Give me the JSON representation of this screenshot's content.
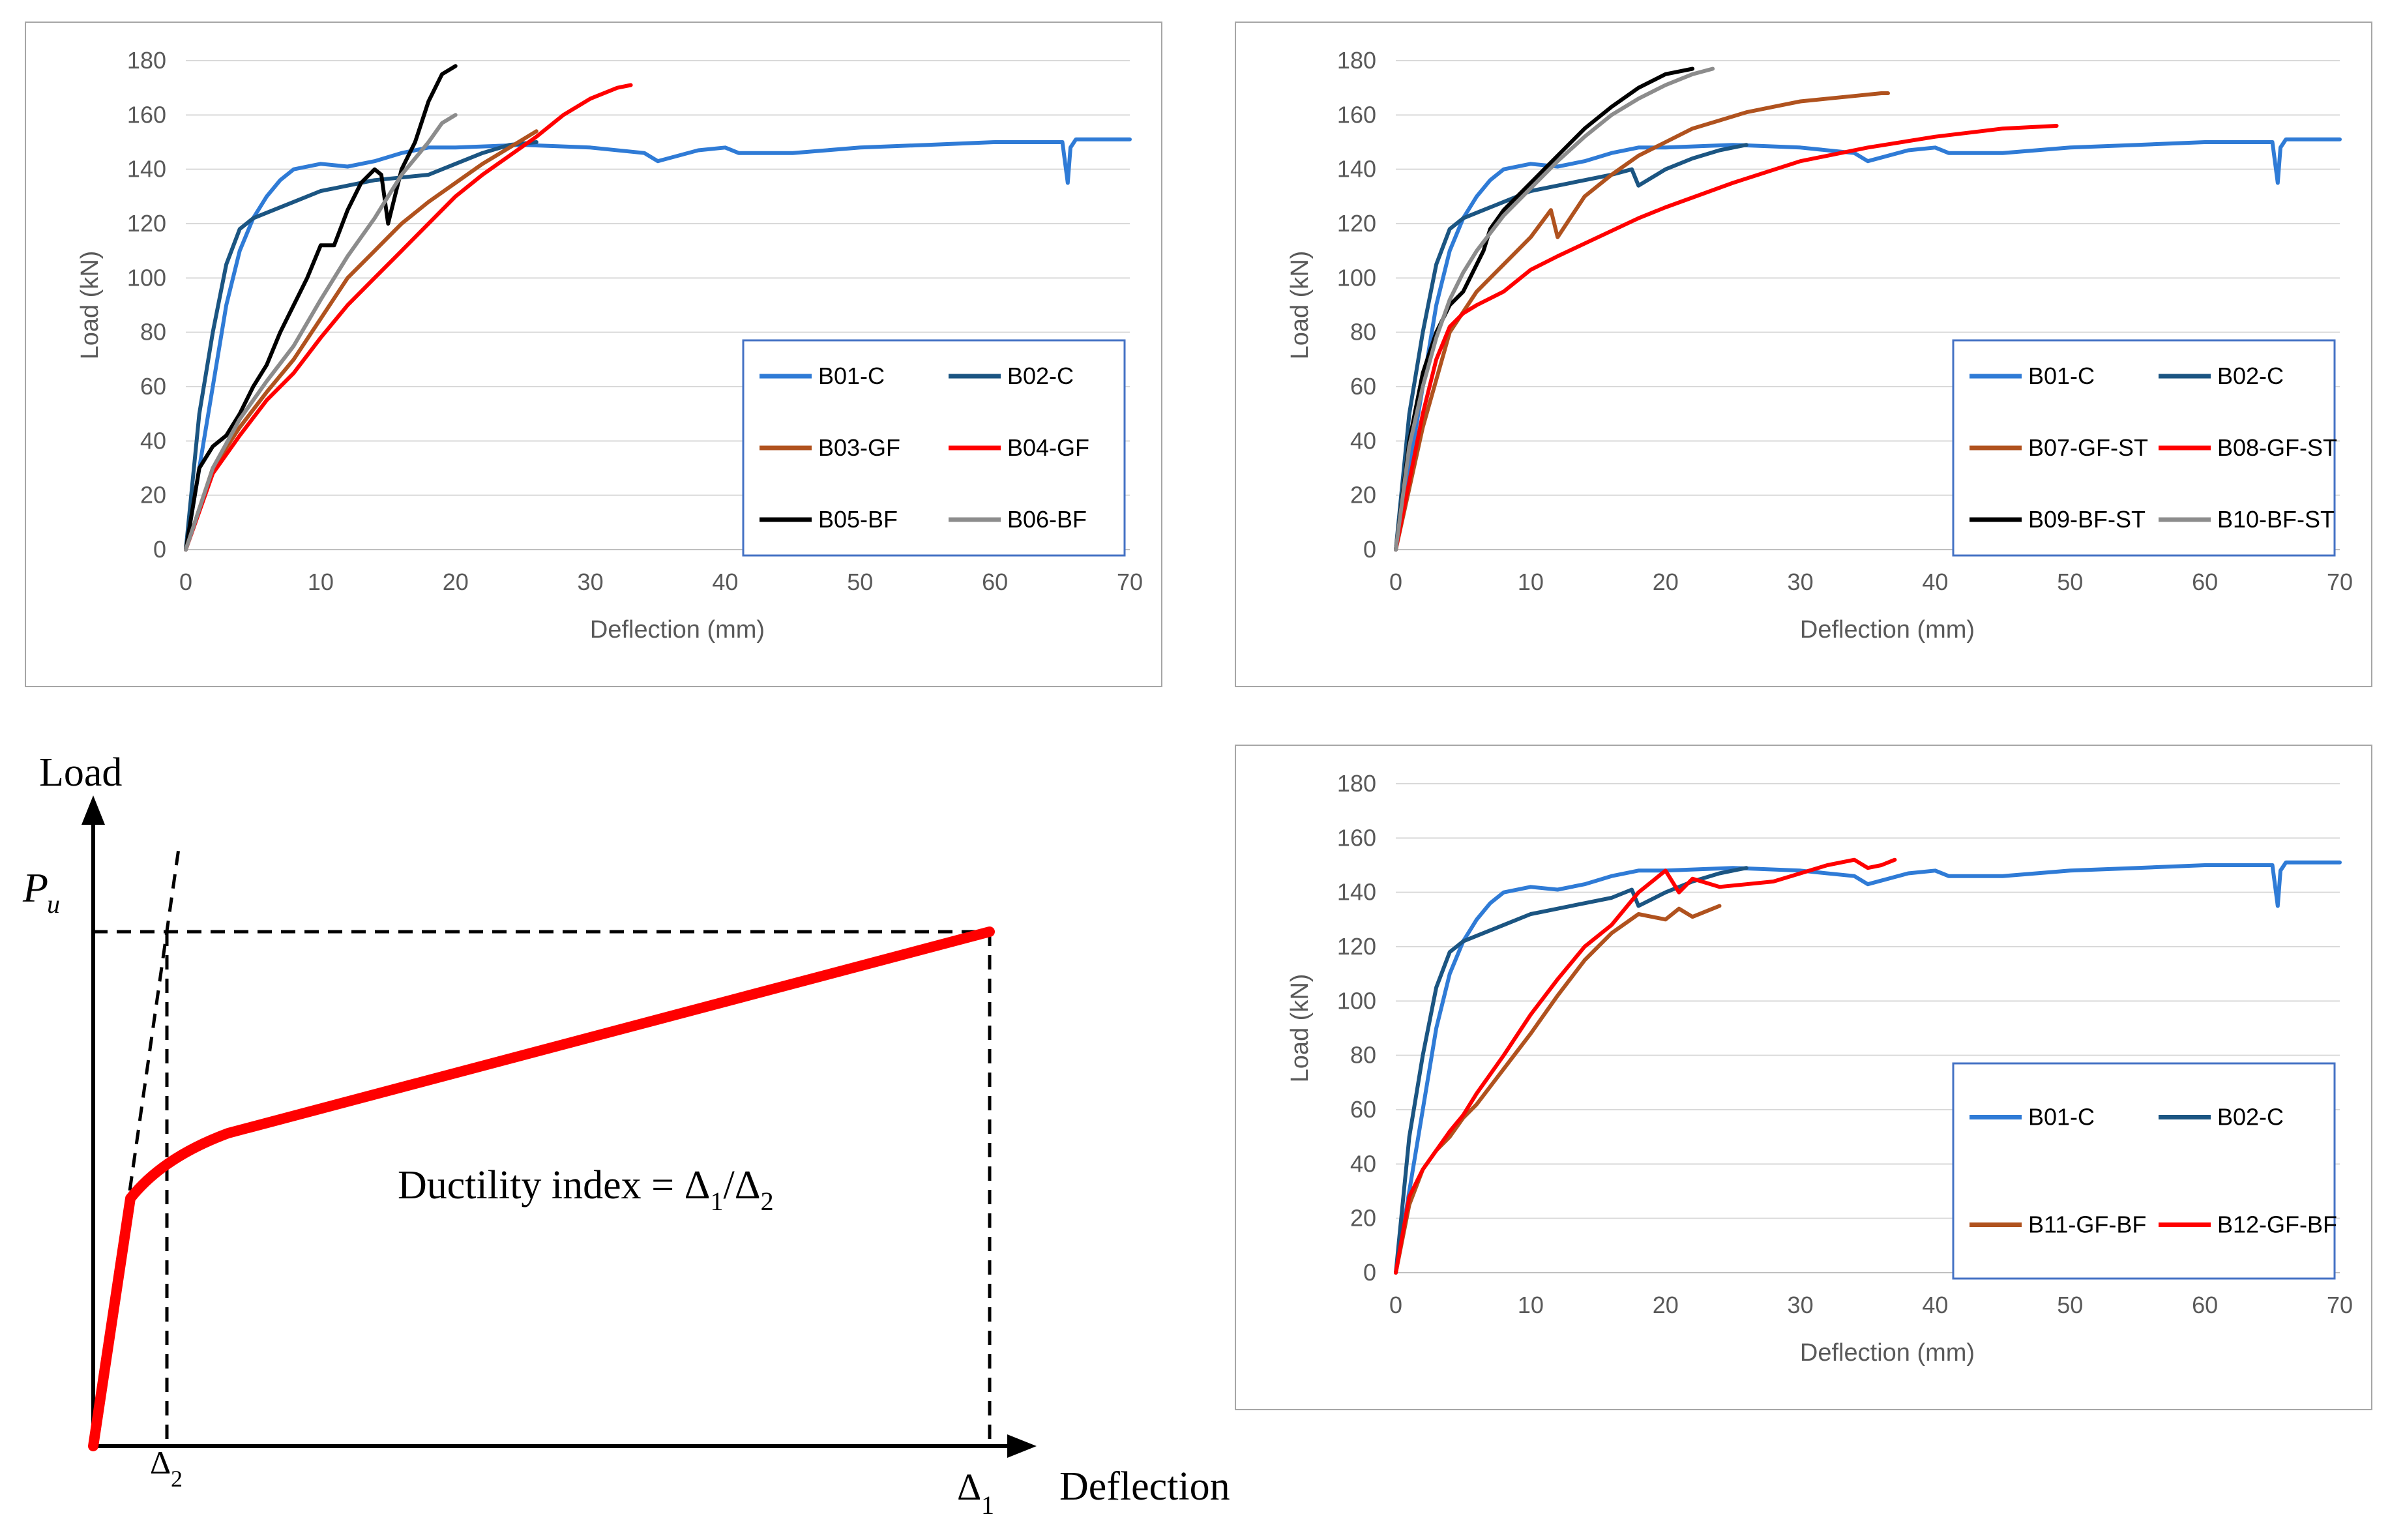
{
  "colors": {
    "B01-C": "#2f7bd6",
    "B02-C": "#1b5582",
    "GF": "#b0521e",
    "red": "#ff0000",
    "black": "#000000",
    "gray": "#8c8c8c",
    "grid": "#d9d9d9",
    "legend_border": "#4472c4"
  },
  "chart_data": [
    {
      "type": "line",
      "id": "chart1",
      "title": "",
      "xlabel": "Deflection (mm)",
      "ylabel": "Load (kN)",
      "xlim": [
        0,
        70
      ],
      "ylim": [
        0,
        180
      ],
      "xticks": [
        0,
        10,
        20,
        30,
        40,
        50,
        60,
        70
      ],
      "yticks": [
        0,
        20,
        40,
        60,
        80,
        100,
        120,
        140,
        160,
        180
      ],
      "grid": "horizontal",
      "legend": "bottom-right",
      "series": [
        {
          "name": "B01-C",
          "color": "#2f7bd6",
          "x": [
            0,
            1,
            2,
            3,
            4,
            5,
            6,
            7,
            8,
            10,
            12,
            14,
            16,
            18,
            20,
            25,
            30,
            34,
            35,
            38,
            40,
            41,
            45,
            50,
            55,
            60,
            65,
            65.4,
            65.6,
            66,
            70
          ],
          "y": [
            0,
            30,
            60,
            90,
            110,
            122,
            130,
            136,
            140,
            142,
            141,
            143,
            146,
            148,
            148,
            149,
            148,
            146,
            143,
            147,
            148,
            146,
            146,
            148,
            149,
            150,
            150,
            135,
            148,
            151,
            151
          ]
        },
        {
          "name": "B02-C",
          "color": "#1b5582",
          "x": [
            0,
            1,
            2,
            3,
            4,
            5,
            6,
            8,
            10,
            12,
            14,
            16,
            18,
            20,
            22,
            24,
            26
          ],
          "y": [
            0,
            50,
            80,
            105,
            118,
            122,
            124,
            128,
            132,
            134,
            136,
            137,
            138,
            142,
            146,
            149,
            150
          ]
        },
        {
          "name": "B03-GF",
          "color": "#b0521e",
          "x": [
            0,
            2,
            4,
            6,
            8,
            10,
            12,
            14,
            16,
            18,
            20,
            22,
            24,
            26
          ],
          "y": [
            0,
            30,
            45,
            58,
            70,
            85,
            100,
            110,
            120,
            128,
            135,
            142,
            148,
            154
          ]
        },
        {
          "name": "B04-GF",
          "color": "#ff0000",
          "x": [
            0,
            2,
            4,
            6,
            8,
            10,
            12,
            14,
            16,
            18,
            20,
            22,
            24,
            26,
            28,
            30,
            32,
            33
          ],
          "y": [
            0,
            28,
            42,
            55,
            65,
            78,
            90,
            100,
            110,
            120,
            130,
            138,
            145,
            152,
            160,
            166,
            170,
            171
          ]
        },
        {
          "name": "B05-BF",
          "color": "#000000",
          "x": [
            0,
            1,
            2,
            3,
            4,
            5,
            6,
            7,
            8,
            9,
            10,
            11,
            12,
            13,
            14,
            14.5,
            15,
            16,
            17,
            18,
            19,
            20
          ],
          "y": [
            0,
            30,
            38,
            42,
            50,
            60,
            68,
            80,
            90,
            100,
            112,
            112,
            125,
            135,
            140,
            138,
            120,
            140,
            150,
            165,
            175,
            178
          ]
        },
        {
          "name": "B06-BF",
          "color": "#8c8c8c",
          "x": [
            0,
            2,
            4,
            6,
            8,
            10,
            12,
            14,
            16,
            18,
            19,
            20
          ],
          "y": [
            0,
            30,
            48,
            62,
            75,
            92,
            108,
            122,
            138,
            150,
            157,
            160
          ]
        }
      ]
    },
    {
      "type": "line",
      "id": "chart2",
      "title": "",
      "xlabel": "Deflection (mm)",
      "ylabel": "Load (kN)",
      "xlim": [
        0,
        70
      ],
      "ylim": [
        0,
        180
      ],
      "xticks": [
        0,
        10,
        20,
        30,
        40,
        50,
        60,
        70
      ],
      "yticks": [
        0,
        20,
        40,
        60,
        80,
        100,
        120,
        140,
        160,
        180
      ],
      "grid": "horizontal",
      "legend": "bottom-right",
      "series": [
        {
          "name": "B01-C",
          "color": "#2f7bd6",
          "x": [
            0,
            1,
            2,
            3,
            4,
            5,
            6,
            7,
            8,
            10,
            12,
            14,
            16,
            18,
            20,
            25,
            30,
            34,
            35,
            38,
            40,
            41,
            45,
            50,
            55,
            60,
            65,
            65.4,
            65.6,
            66,
            70
          ],
          "y": [
            0,
            30,
            60,
            90,
            110,
            122,
            130,
            136,
            140,
            142,
            141,
            143,
            146,
            148,
            148,
            149,
            148,
            146,
            143,
            147,
            148,
            146,
            146,
            148,
            149,
            150,
            150,
            135,
            148,
            151,
            151
          ]
        },
        {
          "name": "B02-C",
          "color": "#1b5582",
          "x": [
            0,
            1,
            2,
            3,
            4,
            5,
            6,
            8,
            10,
            12,
            14,
            16,
            17.5,
            18,
            20,
            22,
            24,
            26
          ],
          "y": [
            0,
            50,
            80,
            105,
            118,
            122,
            124,
            128,
            132,
            134,
            136,
            138,
            140,
            134,
            140,
            144,
            147,
            149
          ]
        },
        {
          "name": "B07-GF-ST",
          "color": "#b0521e",
          "x": [
            0,
            2,
            4,
            6,
            8,
            10,
            11.5,
            12,
            14,
            16,
            18,
            20,
            22,
            24,
            26,
            28,
            30,
            32,
            34,
            36,
            36.5
          ],
          "y": [
            0,
            45,
            80,
            95,
            105,
            115,
            125,
            115,
            130,
            138,
            145,
            150,
            155,
            158,
            161,
            163,
            165,
            166,
            167,
            168,
            168
          ]
        },
        {
          "name": "B08-GF-ST",
          "color": "#ff0000",
          "x": [
            0,
            1,
            2,
            3,
            4,
            5,
            6,
            8,
            10,
            12,
            15,
            18,
            20,
            25,
            30,
            35,
            40,
            45,
            49
          ],
          "y": [
            0,
            25,
            50,
            70,
            82,
            87,
            90,
            95,
            103,
            108,
            115,
            122,
            126,
            135,
            143,
            148,
            152,
            155,
            156
          ]
        },
        {
          "name": "B09-BF-ST",
          "color": "#000000",
          "x": [
            0,
            1,
            2,
            3,
            4,
            5,
            6,
            6.5,
            7,
            8,
            10,
            12,
            14,
            16,
            18,
            20,
            22
          ],
          "y": [
            0,
            40,
            65,
            80,
            90,
            95,
            105,
            110,
            118,
            125,
            135,
            145,
            155,
            163,
            170,
            175,
            177
          ]
        },
        {
          "name": "B10-BF-ST",
          "color": "#8c8c8c",
          "x": [
            0,
            1,
            2,
            3,
            4,
            5,
            6,
            8,
            10,
            12,
            14,
            16,
            18,
            20,
            22,
            23.5
          ],
          "y": [
            0,
            38,
            60,
            78,
            92,
            102,
            110,
            123,
            133,
            143,
            152,
            160,
            166,
            171,
            175,
            177
          ]
        }
      ]
    },
    {
      "type": "line",
      "id": "chart3",
      "title": "",
      "xlabel": "Deflection (mm)",
      "ylabel": "Load (kN)",
      "xlim": [
        0,
        70
      ],
      "ylim": [
        0,
        180
      ],
      "xticks": [
        0,
        10,
        20,
        30,
        40,
        50,
        60,
        70
      ],
      "yticks": [
        0,
        20,
        40,
        60,
        80,
        100,
        120,
        140,
        160,
        180
      ],
      "grid": "horizontal",
      "legend": "bottom-right",
      "series": [
        {
          "name": "B01-C",
          "color": "#2f7bd6",
          "x": [
            0,
            1,
            2,
            3,
            4,
            5,
            6,
            7,
            8,
            10,
            12,
            14,
            16,
            18,
            20,
            25,
            30,
            34,
            35,
            38,
            40,
            41,
            45,
            50,
            55,
            60,
            65,
            65.4,
            65.6,
            66,
            70
          ],
          "y": [
            0,
            30,
            60,
            90,
            110,
            122,
            130,
            136,
            140,
            142,
            141,
            143,
            146,
            148,
            148,
            149,
            148,
            146,
            143,
            147,
            148,
            146,
            146,
            148,
            149,
            150,
            150,
            135,
            148,
            151,
            151
          ]
        },
        {
          "name": "B02-C",
          "color": "#1b5582",
          "x": [
            0,
            1,
            2,
            3,
            4,
            5,
            6,
            8,
            10,
            12,
            14,
            16,
            17.5,
            18,
            20,
            22,
            24,
            26
          ],
          "y": [
            0,
            50,
            80,
            105,
            118,
            122,
            124,
            128,
            132,
            134,
            136,
            138,
            141,
            135,
            140,
            144,
            147,
            149
          ]
        },
        {
          "name": "B11-GF-BF",
          "color": "#b0521e",
          "x": [
            0,
            1,
            2,
            3,
            4,
            5,
            6,
            8,
            10,
            12,
            14,
            16,
            18,
            20,
            21,
            22,
            23,
            24
          ],
          "y": [
            0,
            25,
            38,
            45,
            50,
            57,
            62,
            75,
            88,
            102,
            115,
            125,
            132,
            130,
            134,
            131,
            133,
            135
          ]
        },
        {
          "name": "B12-GF-BF",
          "color": "#ff0000",
          "x": [
            0,
            1,
            2,
            3,
            4,
            5,
            6,
            8,
            10,
            12,
            14,
            16,
            18,
            20,
            21,
            22,
            24,
            26,
            28,
            30,
            32,
            34,
            35,
            36,
            37
          ],
          "y": [
            0,
            28,
            38,
            45,
            52,
            58,
            66,
            80,
            95,
            108,
            120,
            128,
            140,
            148,
            140,
            145,
            142,
            143,
            144,
            147,
            150,
            152,
            149,
            150,
            152
          ]
        }
      ]
    }
  ],
  "schematic": {
    "y_label": "Load",
    "x_label": "Deflection",
    "pu_label": "P",
    "pu_sub": "u",
    "delta1_label": "Δ",
    "delta1_sub": "1",
    "delta2_label": "Δ",
    "delta2_sub": "2",
    "formula_main": "Ductility index = Δ",
    "formula_sub1": "1",
    "formula_slash": "/Δ",
    "formula_sub2": "2"
  }
}
